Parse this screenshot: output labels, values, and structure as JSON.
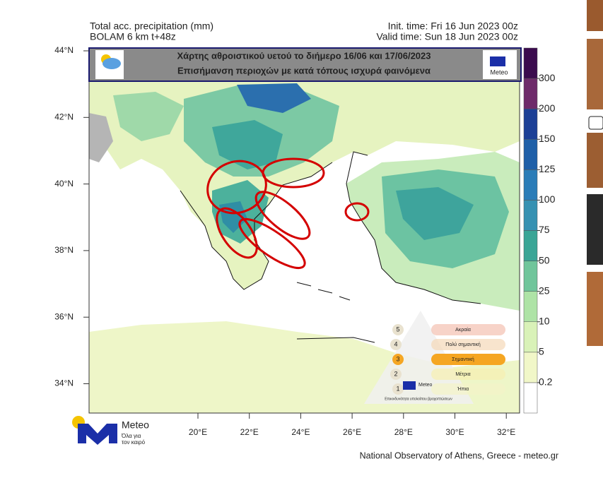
{
  "header": {
    "left": [
      "Total acc. precipitation (mm)",
      "BOLAM 6 km t+48z"
    ],
    "right": [
      "Init. time: Fri 16 Jun 2023 00z",
      "Valid time: Sun 18 Jun 2023 00z"
    ]
  },
  "banner": {
    "lines": [
      "Χάρτης αθροιστικού υετού το διήμερο 16/06 και 17/06/2023",
      "Επισήμανση περιοχών με κατά τόπους ισχυρά φαινόμενα"
    ],
    "logo": "Meteo"
  },
  "axes": {
    "lat": [
      "44°N",
      "42°N",
      "40°N",
      "38°N",
      "36°N",
      "34°N"
    ],
    "lon": [
      "20°E",
      "22°E",
      "24°E",
      "26°E",
      "28°E",
      "30°E",
      "32°E"
    ]
  },
  "colorbar": {
    "labels": [
      0.2,
      5,
      10,
      25,
      50,
      75,
      100,
      125,
      150,
      200,
      300
    ]
  },
  "legend": {
    "levels": [
      {
        "number": 5,
        "label": "Ακραία"
      },
      {
        "number": 4,
        "label": "Πολύ σημαντική"
      },
      {
        "number": 3,
        "label": "Σημαντική"
      },
      {
        "number": 2,
        "label": "Μέτρια"
      },
      {
        "number": 1,
        "label": "Ήπια"
      }
    ],
    "logo": "Meteo",
    "caption": "Επικινδυνότητα υπολοίπου βροχοπτώσεων"
  },
  "footer": {
    "logo": "Meteo",
    "slogan": [
      "Όλα για",
      "τον καιρό"
    ],
    "credit": "National Observatory of Athens, Greece - meteo.gr"
  }
}
